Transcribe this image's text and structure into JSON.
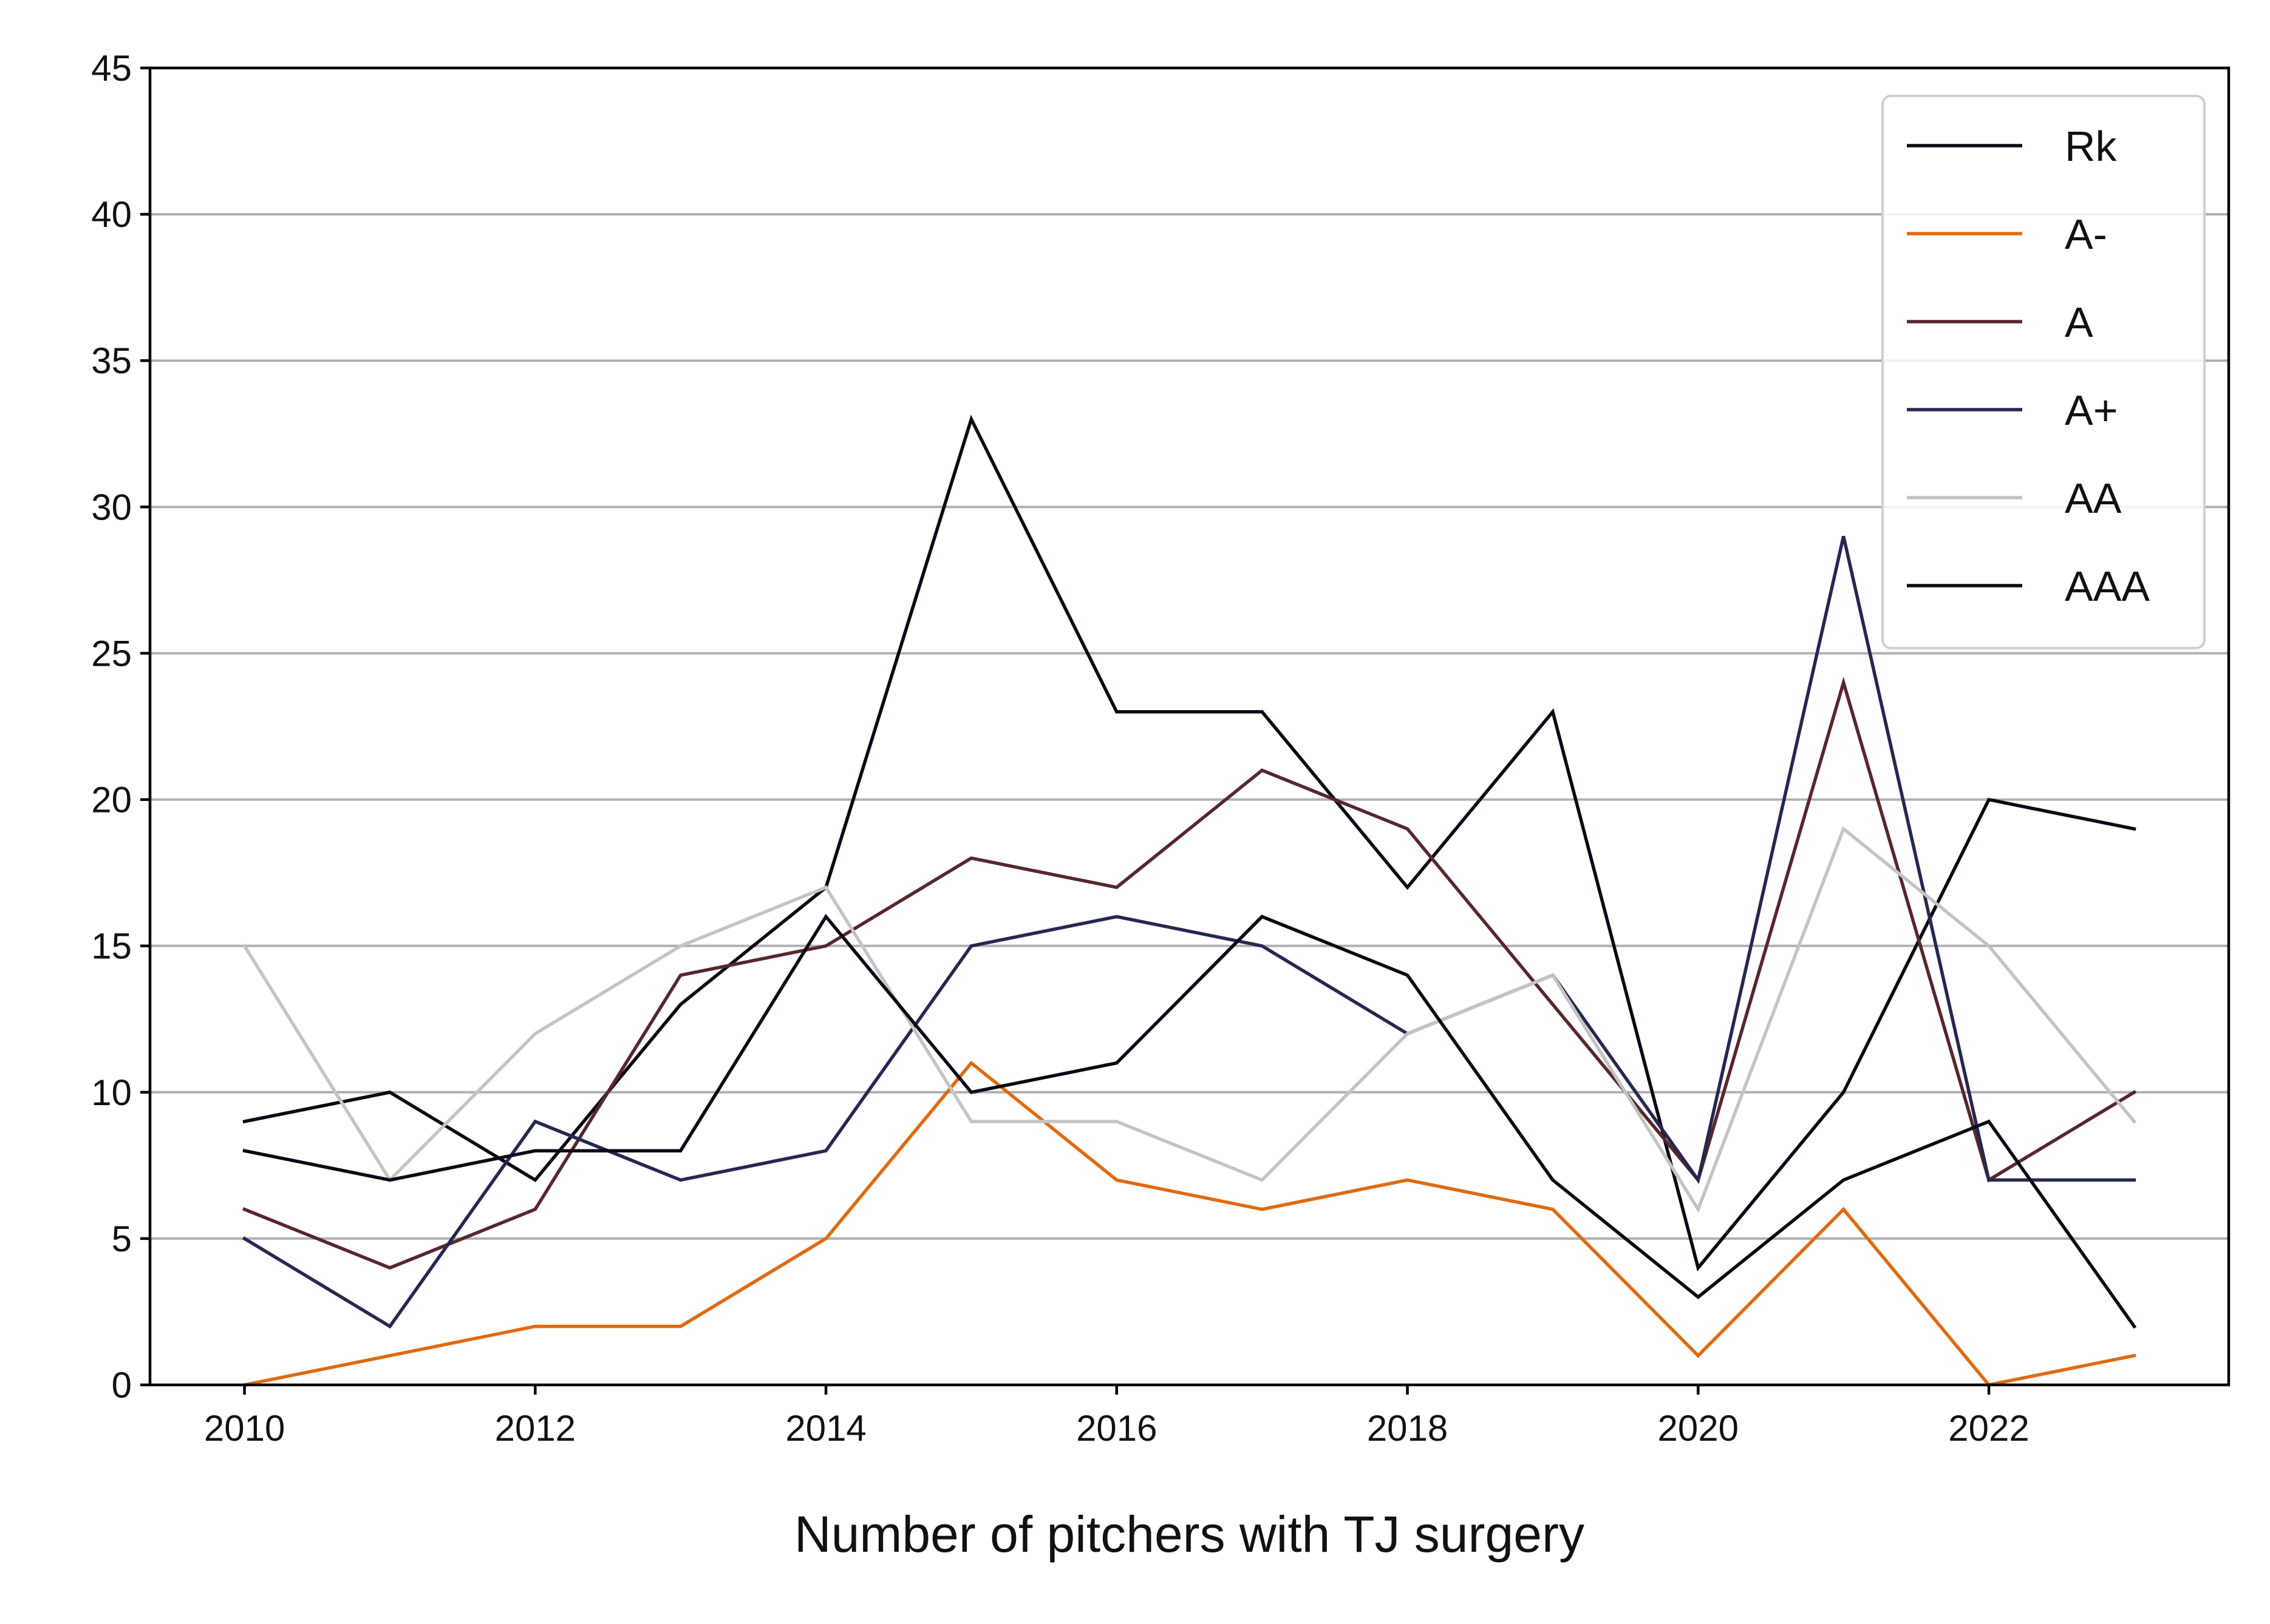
{
  "chart_data": {
    "type": "line",
    "title": "",
    "xlabel": "Number of pitchers with TJ surgery",
    "ylabel": "",
    "x": [
      2010,
      2011,
      2012,
      2013,
      2014,
      2015,
      2016,
      2017,
      2018,
      2019,
      2020,
      2021,
      2022,
      2023
    ],
    "xlim": [
      2009.35,
      2023.65
    ],
    "ylim": [
      0,
      45
    ],
    "xticks": [
      2010,
      2012,
      2014,
      2016,
      2018,
      2020,
      2022
    ],
    "yticks": [
      0,
      5,
      10,
      15,
      20,
      25,
      30,
      35,
      40,
      45
    ],
    "grid": "horizontal",
    "legend_position": "top-right",
    "series": [
      {
        "name": "Rk",
        "color": "#0a0a14",
        "values": [
          9,
          10,
          7,
          13,
          17,
          33,
          23,
          23,
          17,
          23,
          4,
          10,
          20,
          19
        ]
      },
      {
        "name": "A-",
        "color": "#e06a10",
        "values": [
          0,
          1,
          2,
          2,
          5,
          11,
          7,
          6,
          7,
          6,
          1,
          6,
          0,
          1
        ]
      },
      {
        "name": "A",
        "color": "#58272e",
        "values": [
          6,
          4,
          6,
          14,
          15,
          18,
          17,
          21,
          19,
          13,
          7,
          24,
          7,
          10
        ]
      },
      {
        "name": "A+",
        "color": "#262850",
        "values": [
          5,
          2,
          9,
          7,
          8,
          15,
          16,
          15,
          12,
          14,
          7,
          29,
          7,
          7
        ]
      },
      {
        "name": "AA",
        "color": "#c4c4c4",
        "values": [
          15,
          7,
          12,
          15,
          17,
          9,
          9,
          7,
          12,
          14,
          6,
          19,
          15,
          9
        ]
      },
      {
        "name": "AAA",
        "color": "#0a0a14",
        "values": [
          8,
          7,
          8,
          8,
          16,
          10,
          11,
          16,
          14,
          7,
          3,
          7,
          9,
          2
        ]
      }
    ]
  }
}
